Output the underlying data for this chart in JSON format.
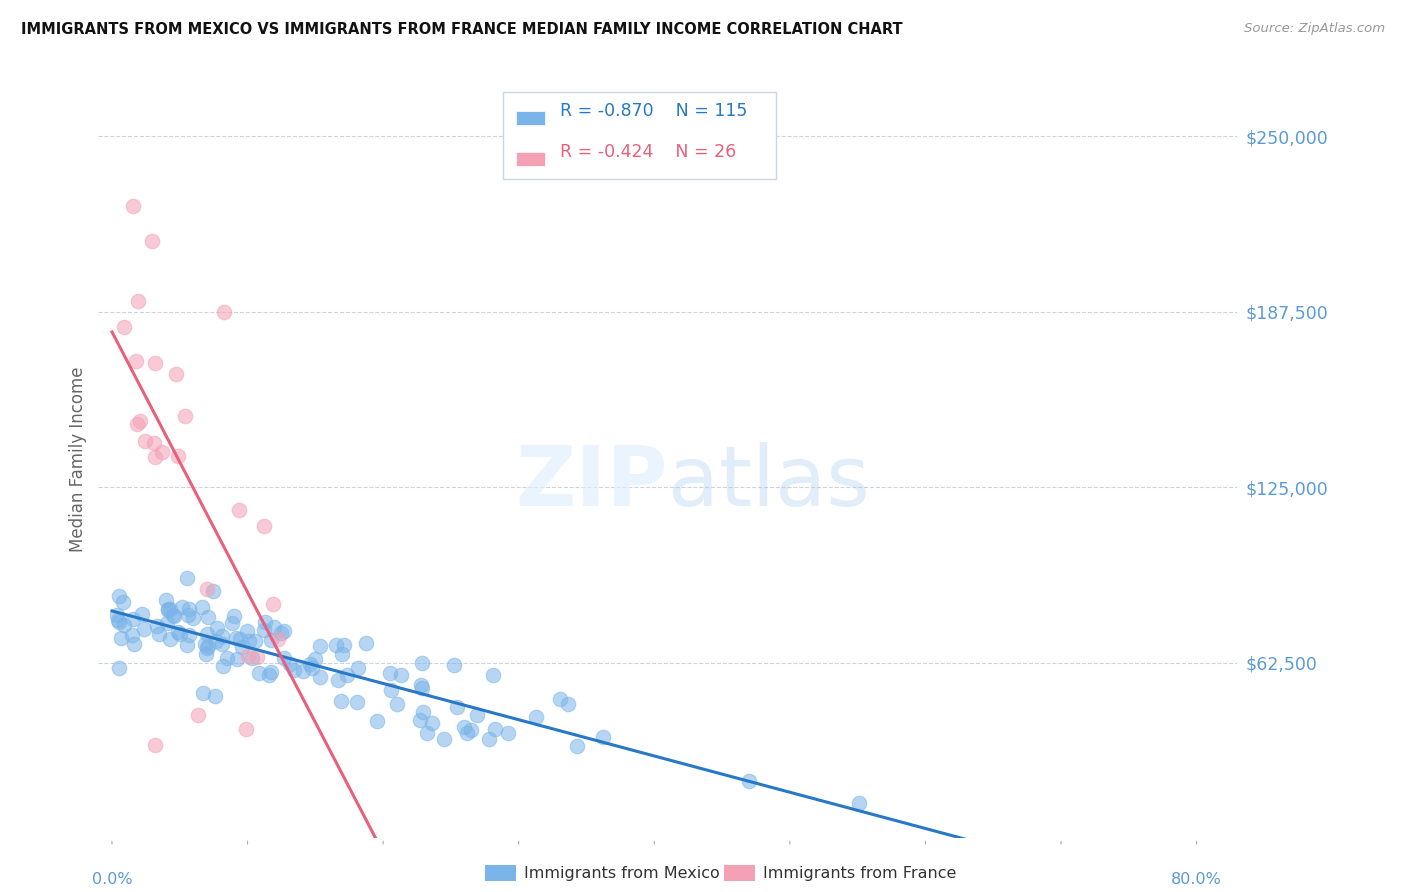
{
  "title": "IMMIGRANTS FROM MEXICO VS IMMIGRANTS FROM FRANCE MEDIAN FAMILY INCOME CORRELATION CHART",
  "source": "Source: ZipAtlas.com",
  "ylabel": "Median Family Income",
  "ytick_vals": [
    62500,
    125000,
    187500,
    250000
  ],
  "ytick_labels": [
    "$62,500",
    "$125,000",
    "$187,500",
    "$250,000"
  ],
  "ymin": 0,
  "ymax": 270000,
  "xmin": 0.0,
  "xmax": 0.8,
  "legend_mexico_R": "-0.870",
  "legend_mexico_N": "115",
  "legend_france_R": "-0.424",
  "legend_france_N": "26",
  "mexico_scatter_color": "#7ab4e8",
  "france_scatter_color": "#f4a0b5",
  "mexico_line_color": "#2878c8",
  "france_line_color": "#e8607a",
  "dashed_line_color": "#c8d4e8",
  "grid_color": "#c8d4e0",
  "background_color": "#ffffff",
  "title_fontsize": 10.5,
  "axis_label_color": "#5b9bd5",
  "ylabel_color": "#666666",
  "source_color": "#999999",
  "legend_text_mexico_color": "#2878c8",
  "legend_text_france_color": "#e8607a",
  "bottom_legend_color": "#333333"
}
